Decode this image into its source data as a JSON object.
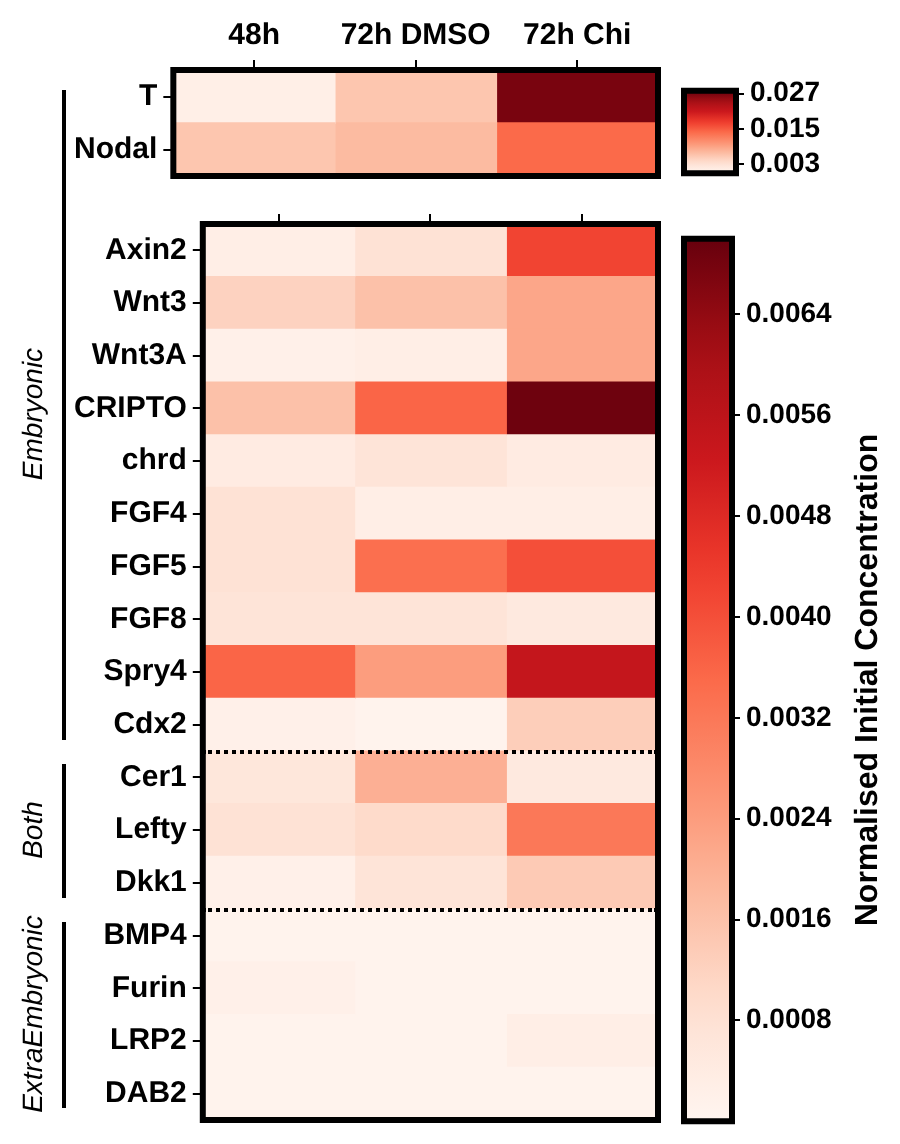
{
  "chart_data": [
    {
      "type": "heatmap",
      "categories": [
        "48h",
        "72h DMSO",
        "72h Chi"
      ],
      "y_categories": [
        "T",
        "Nodal"
      ],
      "cells": [
        [
          0.001,
          0.006,
          0.027
        ],
        [
          0.006,
          0.007,
          0.014
        ]
      ],
      "clim": [
        0,
        0.028
      ],
      "cticks": [
        0.003,
        0.015,
        0.027
      ]
    },
    {
      "type": "heatmap",
      "categories": [
        null,
        null,
        null
      ],
      "tick_labels": "y",
      "y_categories": [
        "Axin2",
        "Wnt3",
        "Wnt3A",
        "CRIPTO",
        "chrd",
        "FGF4",
        "FGF5",
        "FGF8",
        "Spry4",
        "Cdx2",
        "Cer1",
        "Lefty",
        "Dkk1",
        "BMP4",
        "Furin",
        "LRP2",
        "DAB2"
      ],
      "cells": [
        [
          0.0003,
          0.0008,
          0.0042
        ],
        [
          0.0012,
          0.0016,
          0.0022
        ],
        [
          0.0002,
          0.0003,
          0.0022
        ],
        [
          0.0016,
          0.0036,
          0.0069
        ],
        [
          0.0004,
          0.0007,
          0.0004
        ],
        [
          0.0008,
          0.0003,
          0.0003
        ],
        [
          0.0008,
          0.0034,
          0.004
        ],
        [
          0.0007,
          0.0007,
          0.0005
        ],
        [
          0.0036,
          0.0024,
          0.0054
        ],
        [
          0.0002,
          0.0001,
          0.0013
        ],
        [
          0.0006,
          0.002,
          0.0005
        ],
        [
          0.0008,
          0.001,
          0.0032
        ],
        [
          0.0002,
          0.0007,
          0.0014
        ],
        [
          0.0001,
          0.0001,
          0.0001
        ],
        [
          0.0002,
          0.0001,
          0.0001
        ],
        [
          0.0001,
          0.0001,
          0.0003
        ],
        [
          0.0001,
          0.0001,
          0.0001
        ]
      ],
      "clim": [
        0,
        0.007
      ],
      "cticks": [
        0.0008,
        0.0016,
        0.0024,
        0.0032,
        {
          "value": 0.004,
          "label": "0.0040"
        },
        0.0048,
        0.0056,
        0.0064
      ],
      "clabel": "Normalised Initial Concentration",
      "annotations": [
        "Embryonic",
        "Both",
        "ExtraEmbryonic"
      ]
    }
  ]
}
